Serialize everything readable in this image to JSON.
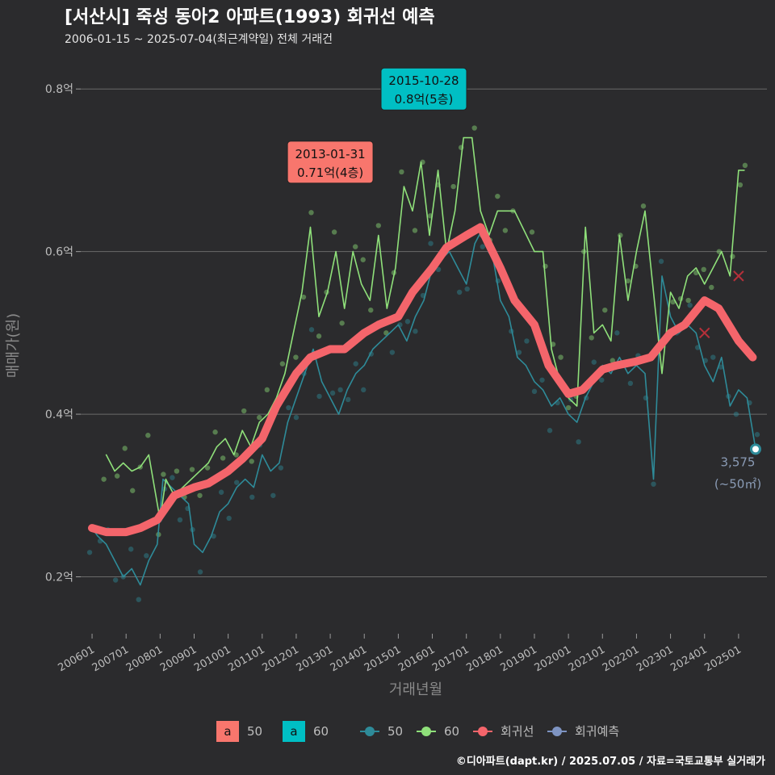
{
  "header": {
    "title": "[서산시] 죽성 동아2 아파트(1993) 회귀선 예측",
    "subtitle": "2006-01-15 ~ 2025-07-04(최근계약일) 전체 거래건"
  },
  "credit": "©디아파트(dapt.kr) / 2025.07.05 / 자료=국토교통부 실거래가",
  "colors": {
    "s50": "#2e8b99",
    "s60": "#8fe07a",
    "regression": "#f4656b",
    "forecast": "#7e94c2",
    "annot50": "#f8766d",
    "annot60": "#00bfc4"
  },
  "chart_data": {
    "type": "line",
    "xlabel": "거래년월",
    "ylabel": "매매가(원)",
    "x_range": [
      "2006-01",
      "2025-07"
    ],
    "ylim": [
      0.13,
      0.83
    ],
    "yticks": [
      {
        "value": 0.2,
        "label": "0.2억"
      },
      {
        "value": 0.4,
        "label": "0.4억"
      },
      {
        "value": 0.6,
        "label": "0.6억"
      },
      {
        "value": 0.8,
        "label": "0.8억"
      }
    ],
    "xticks": [
      "200601",
      "200701",
      "200801",
      "200901",
      "201001",
      "201101",
      "201201",
      "201301",
      "201401",
      "201501",
      "201601",
      "201701",
      "201801",
      "201901",
      "202001",
      "202101",
      "202201",
      "202301",
      "202401",
      "202501"
    ],
    "series": [
      {
        "name": "50",
        "type": "line",
        "points": [
          [
            "2006-01",
            0.26
          ],
          [
            "2006-03",
            0.25
          ],
          [
            "2006-06",
            0.24
          ],
          [
            "2006-09",
            0.22
          ],
          [
            "2006-12",
            0.2
          ],
          [
            "2007-03",
            0.21
          ],
          [
            "2007-06",
            0.19
          ],
          [
            "2007-09",
            0.22
          ],
          [
            "2007-12",
            0.24
          ],
          [
            "2008-02",
            0.32
          ],
          [
            "2008-05",
            0.31
          ],
          [
            "2008-08",
            0.3
          ],
          [
            "2008-11",
            0.29
          ],
          [
            "2009-01",
            0.24
          ],
          [
            "2009-04",
            0.23
          ],
          [
            "2009-07",
            0.25
          ],
          [
            "2009-10",
            0.28
          ],
          [
            "2010-01",
            0.29
          ],
          [
            "2010-04",
            0.31
          ],
          [
            "2010-07",
            0.32
          ],
          [
            "2010-10",
            0.31
          ],
          [
            "2011-01",
            0.35
          ],
          [
            "2011-04",
            0.33
          ],
          [
            "2011-07",
            0.34
          ],
          [
            "2011-10",
            0.39
          ],
          [
            "2012-01",
            0.42
          ],
          [
            "2012-04",
            0.45
          ],
          [
            "2012-07",
            0.48
          ],
          [
            "2012-10",
            0.44
          ],
          [
            "2013-01",
            0.42
          ],
          [
            "2013-04",
            0.4
          ],
          [
            "2013-07",
            0.43
          ],
          [
            "2013-10",
            0.45
          ],
          [
            "2014-01",
            0.46
          ],
          [
            "2014-04",
            0.48
          ],
          [
            "2014-07",
            0.49
          ],
          [
            "2014-10",
            0.5
          ],
          [
            "2015-01",
            0.51
          ],
          [
            "2015-04",
            0.49
          ],
          [
            "2015-07",
            0.52
          ],
          [
            "2015-10",
            0.54
          ],
          [
            "2016-01",
            0.58
          ],
          [
            "2016-04",
            0.59
          ],
          [
            "2016-07",
            0.6
          ],
          [
            "2016-10",
            0.58
          ],
          [
            "2017-01",
            0.56
          ],
          [
            "2017-04",
            0.61
          ],
          [
            "2017-07",
            0.63
          ],
          [
            "2017-10",
            0.6
          ],
          [
            "2018-01",
            0.54
          ],
          [
            "2018-04",
            0.52
          ],
          [
            "2018-07",
            0.47
          ],
          [
            "2018-10",
            0.46
          ],
          [
            "2019-01",
            0.44
          ],
          [
            "2019-04",
            0.43
          ],
          [
            "2019-07",
            0.41
          ],
          [
            "2019-10",
            0.42
          ],
          [
            "2020-01",
            0.4
          ],
          [
            "2020-04",
            0.39
          ],
          [
            "2020-07",
            0.42
          ],
          [
            "2020-10",
            0.44
          ],
          [
            "2021-01",
            0.46
          ],
          [
            "2021-04",
            0.45
          ],
          [
            "2021-07",
            0.47
          ],
          [
            "2021-10",
            0.45
          ],
          [
            "2022-01",
            0.46
          ],
          [
            "2022-04",
            0.45
          ],
          [
            "2022-07",
            0.32
          ],
          [
            "2022-10",
            0.57
          ],
          [
            "2023-01",
            0.52
          ],
          [
            "2023-04",
            0.5
          ],
          [
            "2023-07",
            0.51
          ],
          [
            "2023-10",
            0.5
          ],
          [
            "2024-01",
            0.46
          ],
          [
            "2024-04",
            0.44
          ],
          [
            "2024-07",
            0.47
          ],
          [
            "2024-10",
            0.41
          ],
          [
            "2025-01",
            0.43
          ],
          [
            "2025-04",
            0.42
          ],
          [
            "2025-07",
            0.357
          ]
        ]
      },
      {
        "name": "60",
        "type": "line",
        "points": [
          [
            "2006-06",
            0.35
          ],
          [
            "2006-09",
            0.33
          ],
          [
            "2006-12",
            0.34
          ],
          [
            "2007-03",
            0.33
          ],
          [
            "2007-06",
            0.335
          ],
          [
            "2007-09",
            0.35
          ],
          [
            "2008-01",
            0.27
          ],
          [
            "2008-03",
            0.32
          ],
          [
            "2008-06",
            0.3
          ],
          [
            "2008-09",
            0.31
          ],
          [
            "2008-12",
            0.32
          ],
          [
            "2009-03",
            0.33
          ],
          [
            "2009-06",
            0.34
          ],
          [
            "2009-09",
            0.36
          ],
          [
            "2009-12",
            0.37
          ],
          [
            "2010-03",
            0.35
          ],
          [
            "2010-06",
            0.38
          ],
          [
            "2010-09",
            0.36
          ],
          [
            "2010-12",
            0.39
          ],
          [
            "2011-03",
            0.4
          ],
          [
            "2011-06",
            0.42
          ],
          [
            "2011-09",
            0.45
          ],
          [
            "2011-12",
            0.5
          ],
          [
            "2012-03",
            0.55
          ],
          [
            "2012-06",
            0.63
          ],
          [
            "2012-09",
            0.52
          ],
          [
            "2012-12",
            0.55
          ],
          [
            "2013-03",
            0.6
          ],
          [
            "2013-06",
            0.53
          ],
          [
            "2013-09",
            0.6
          ],
          [
            "2013-12",
            0.56
          ],
          [
            "2014-03",
            0.54
          ],
          [
            "2014-06",
            0.62
          ],
          [
            "2014-09",
            0.53
          ],
          [
            "2014-12",
            0.58
          ],
          [
            "2015-03",
            0.68
          ],
          [
            "2015-06",
            0.65
          ],
          [
            "2015-09",
            0.71
          ],
          [
            "2015-12",
            0.62
          ],
          [
            "2016-03",
            0.7
          ],
          [
            "2016-06",
            0.6
          ],
          [
            "2016-09",
            0.65
          ],
          [
            "2016-12",
            0.74
          ],
          [
            "2017-03",
            0.74
          ],
          [
            "2017-06",
            0.65
          ],
          [
            "2017-09",
            0.62
          ],
          [
            "2017-12",
            0.65
          ],
          [
            "2018-03",
            0.65
          ],
          [
            "2018-06",
            0.65
          ],
          [
            "2019-01",
            0.6
          ],
          [
            "2019-04",
            0.6
          ],
          [
            "2019-07",
            0.48
          ],
          [
            "2019-10",
            0.44
          ],
          [
            "2020-01",
            0.42
          ],
          [
            "2020-04",
            0.41
          ],
          [
            "2020-07",
            0.63
          ],
          [
            "2020-10",
            0.5
          ],
          [
            "2021-01",
            0.51
          ],
          [
            "2021-04",
            0.49
          ],
          [
            "2021-07",
            0.62
          ],
          [
            "2021-10",
            0.54
          ],
          [
            "2022-01",
            0.6
          ],
          [
            "2022-04",
            0.65
          ],
          [
            "2022-10",
            0.45
          ],
          [
            "2023-01",
            0.55
          ],
          [
            "2023-04",
            0.53
          ],
          [
            "2023-07",
            0.57
          ],
          [
            "2023-10",
            0.58
          ],
          [
            "2024-01",
            0.56
          ],
          [
            "2024-04",
            0.58
          ],
          [
            "2024-07",
            0.6
          ],
          [
            "2024-10",
            0.57
          ],
          [
            "2025-01",
            0.7
          ],
          [
            "2025-03",
            0.7
          ]
        ]
      },
      {
        "name": "회귀선",
        "type": "line",
        "points": [
          [
            "2006-01",
            0.26
          ],
          [
            "2006-06",
            0.255
          ],
          [
            "2007-01",
            0.255
          ],
          [
            "2007-06",
            0.26
          ],
          [
            "2007-12",
            0.27
          ],
          [
            "2008-06",
            0.3
          ],
          [
            "2009-01",
            0.31
          ],
          [
            "2009-06",
            0.315
          ],
          [
            "2010-01",
            0.33
          ],
          [
            "2010-06",
            0.345
          ],
          [
            "2011-01",
            0.37
          ],
          [
            "2011-06",
            0.41
          ],
          [
            "2012-01",
            0.45
          ],
          [
            "2012-06",
            0.47
          ],
          [
            "2013-01",
            0.48
          ],
          [
            "2013-06",
            0.48
          ],
          [
            "2014-01",
            0.5
          ],
          [
            "2014-06",
            0.51
          ],
          [
            "2015-01",
            0.52
          ],
          [
            "2015-06",
            0.55
          ],
          [
            "2016-01",
            0.58
          ],
          [
            "2016-06",
            0.605
          ],
          [
            "2017-01",
            0.62
          ],
          [
            "2017-06",
            0.63
          ],
          [
            "2018-01",
            0.58
          ],
          [
            "2018-06",
            0.54
          ],
          [
            "2019-01",
            0.51
          ],
          [
            "2019-06",
            0.46
          ],
          [
            "2020-01",
            0.425
          ],
          [
            "2020-06",
            0.43
          ],
          [
            "2021-01",
            0.455
          ],
          [
            "2021-06",
            0.46
          ],
          [
            "2022-01",
            0.465
          ],
          [
            "2022-06",
            0.47
          ],
          [
            "2023-01",
            0.5
          ],
          [
            "2023-06",
            0.51
          ],
          [
            "2024-01",
            0.54
          ],
          [
            "2024-06",
            0.53
          ],
          [
            "2025-01",
            0.49
          ],
          [
            "2025-06",
            0.47
          ]
        ]
      }
    ],
    "legend": {
      "placement": "bottom",
      "area_keys": [
        {
          "label": "50"
        },
        {
          "label": "60"
        }
      ],
      "line_keys": [
        {
          "label": "50"
        },
        {
          "label": "60"
        },
        {
          "label": "회귀선"
        },
        {
          "label": "회귀예측"
        }
      ]
    },
    "annotations": [
      {
        "date": "2013-01-31",
        "x": "2013-01",
        "y": 0.71,
        "line1": "2013-01-31",
        "line2": "0.71억(4층)",
        "series": "50"
      },
      {
        "date": "2015-10-28",
        "x": "2015-10",
        "y": 0.8,
        "line1": "2015-10-28",
        "line2": "0.8억(5층)",
        "series": "60"
      }
    ],
    "end_label": {
      "x": "2025-07",
      "y": 0.357,
      "line1": "3,575",
      "line2": "(~50㎡)"
    },
    "cross_marks": [
      [
        "2024-01",
        0.5
      ],
      [
        "2025-01",
        0.57
      ]
    ],
    "grid": true
  }
}
